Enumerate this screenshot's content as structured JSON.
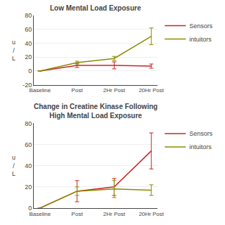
{
  "chart_data": [
    {
      "type": "line",
      "title": "Low Mental Load Exposure",
      "ylabel": "u\n/\nL",
      "categories": [
        "Baseline",
        "Post",
        "2Hr Post",
        "20Hr Post"
      ],
      "series": [
        {
          "name": "Sensors",
          "color": "#cc2222",
          "values": [
            0,
            8,
            8,
            7
          ],
          "errors": [
            0,
            3,
            5,
            3
          ]
        },
        {
          "name": "intuitors",
          "color": "#8B8B00",
          "values": [
            0,
            12,
            18,
            50
          ],
          "errors": [
            0,
            2,
            3,
            12
          ]
        }
      ],
      "ylim": [
        -20,
        80
      ],
      "yticks": [
        -20,
        0,
        20,
        40,
        60,
        80
      ],
      "grid": true,
      "legend": "right"
    },
    {
      "type": "line",
      "title": "Change in Creatine Kinase Following\nHigh Mental Load Exposure",
      "ylabel": "u\n/\nL",
      "categories": [
        "Baseline",
        "Post",
        "2Hr Post",
        "20Hr Post"
      ],
      "series": [
        {
          "name": "Sensors",
          "color": "#cc2222",
          "values": [
            0,
            16,
            20,
            54
          ],
          "errors": [
            0,
            10,
            8,
            17
          ]
        },
        {
          "name": "intuitors",
          "color": "#8B8B00",
          "values": [
            0,
            16,
            18,
            17
          ],
          "errors": [
            0,
            4,
            8,
            5
          ]
        }
      ],
      "ylim": [
        0,
        80
      ],
      "yticks": [
        0,
        20,
        40,
        60,
        80
      ],
      "grid": true,
      "legend": "right"
    }
  ]
}
